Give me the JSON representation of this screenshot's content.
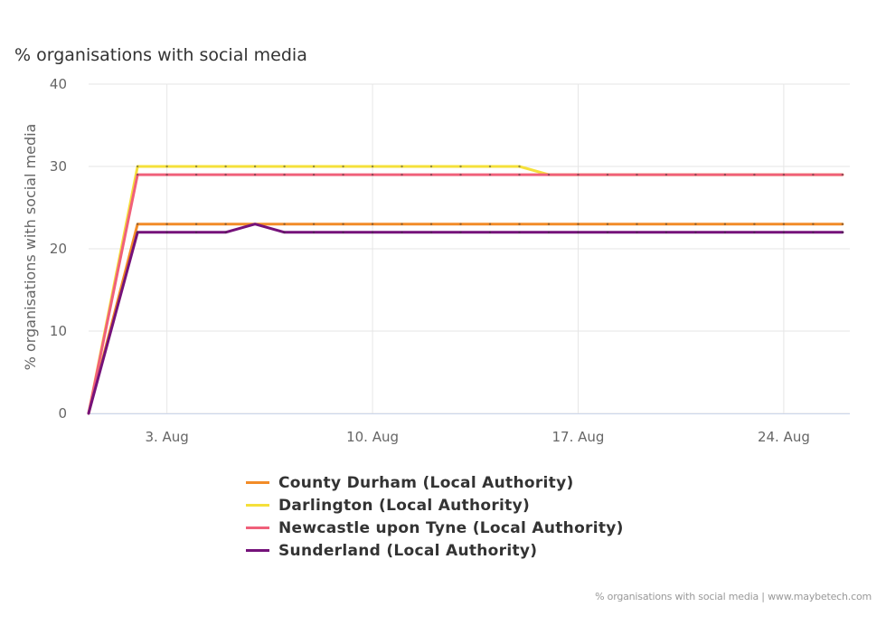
{
  "title": "% organisations with social media",
  "credits": "% organisations with social media | www.maybetech.com",
  "chart_data": {
    "type": "line",
    "title": "% organisations with social media",
    "xlabel": "",
    "ylabel": "% organisations with social media",
    "ylim": [
      0,
      40
    ],
    "yticks": [
      0,
      10,
      20,
      30,
      40
    ],
    "xlim": [
      "2021-07-31T08:00",
      "2021-08-26T06:00"
    ],
    "xticks": [
      {
        "date": "2021-08-03",
        "label": "3. Aug"
      },
      {
        "date": "2021-08-10",
        "label": "10. Aug"
      },
      {
        "date": "2021-08-17",
        "label": "17. Aug"
      },
      {
        "date": "2021-08-24",
        "label": "24. Aug"
      }
    ],
    "grid": true,
    "legend_position": "bottom",
    "series": [
      {
        "name": "County Durham (Local Authority)",
        "color": "#f28c28",
        "points": [
          [
            "2021-07-31T08:00",
            0
          ],
          [
            "2021-08-02T00:00",
            23
          ],
          [
            "2021-08-26T00:00",
            23
          ]
        ]
      },
      {
        "name": "Darlington (Local Authority)",
        "color": "#f5e03a",
        "points": [
          [
            "2021-07-31T08:00",
            0
          ],
          [
            "2021-08-02T00:00",
            30
          ],
          [
            "2021-08-15T00:00",
            30
          ],
          [
            "2021-08-16T00:00",
            29
          ],
          [
            "2021-08-26T00:00",
            29
          ]
        ]
      },
      {
        "name": "Newcastle upon Tyne (Local Authority)",
        "color": "#f0607a",
        "points": [
          [
            "2021-07-31T08:00",
            0
          ],
          [
            "2021-08-02T00:00",
            29
          ],
          [
            "2021-08-26T00:00",
            29
          ]
        ]
      },
      {
        "name": "Sunderland (Local Authority)",
        "color": "#75127a",
        "points": [
          [
            "2021-07-31T08:00",
            0
          ],
          [
            "2021-08-02T00:00",
            22
          ],
          [
            "2021-08-05T00:00",
            22
          ],
          [
            "2021-08-06T00:00",
            23
          ],
          [
            "2021-08-07T00:00",
            22
          ],
          [
            "2021-08-26T00:00",
            22
          ]
        ]
      }
    ]
  }
}
